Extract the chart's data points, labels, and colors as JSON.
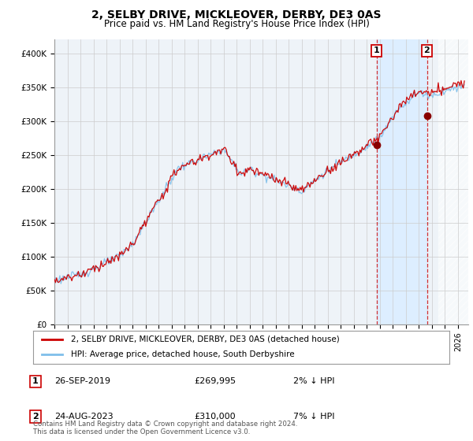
{
  "title": "2, SELBY DRIVE, MICKLEOVER, DERBY, DE3 0AS",
  "subtitle": "Price paid vs. HM Land Registry's House Price Index (HPI)",
  "ylim": [
    0,
    420000
  ],
  "yticks": [
    0,
    50000,
    100000,
    150000,
    200000,
    250000,
    300000,
    350000,
    400000
  ],
  "ytick_labels": [
    "£0",
    "£50K",
    "£100K",
    "£150K",
    "£200K",
    "£250K",
    "£300K",
    "£350K",
    "£400K"
  ],
  "x_start_year": 1995,
  "x_end_year": 2026,
  "hpi_color": "#7fbfea",
  "price_color": "#cc0000",
  "marker1_date": 2019.75,
  "marker1_price": 265000,
  "marker2_date": 2023.62,
  "marker2_price": 308000,
  "legend_line1": "2, SELBY DRIVE, MICKLEOVER, DERBY, DE3 0AS (detached house)",
  "legend_line2": "HPI: Average price, detached house, South Derbyshire",
  "footer": "Contains HM Land Registry data © Crown copyright and database right 2024.\nThis data is licensed under the Open Government Licence v3.0.",
  "background_color": "#eef3f8",
  "plot_bg_color": "#ffffff",
  "grid_color": "#cccccc",
  "shade_color": "#ddeeff"
}
